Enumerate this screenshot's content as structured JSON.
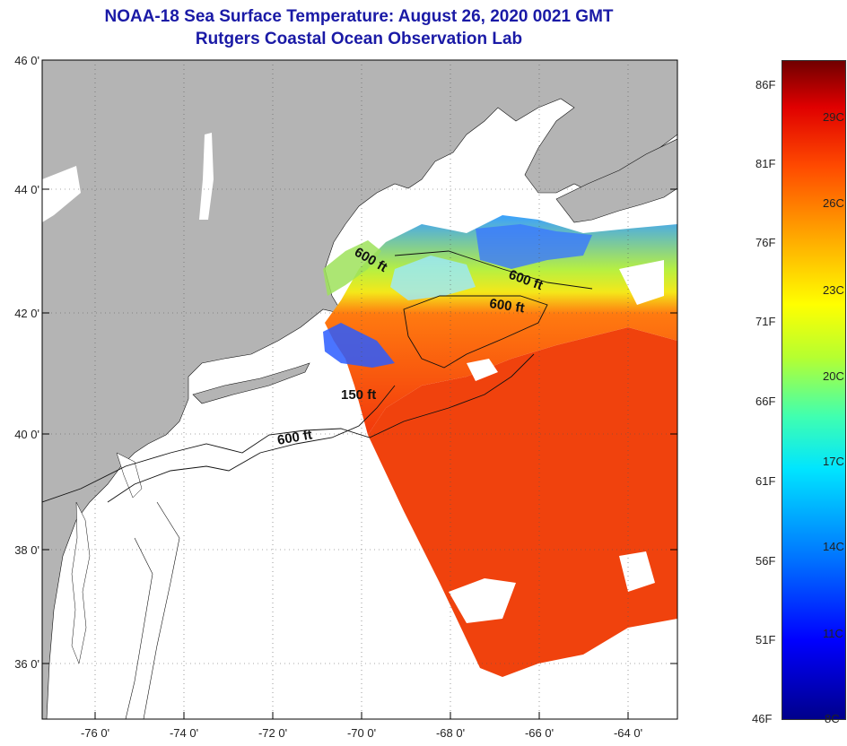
{
  "header": {
    "title_line1": "NOAA-18 Sea Surface Temperature:  August 26, 2020 0021 GMT",
    "title_line2": "Rutgers Coastal Ocean Observation Lab"
  },
  "map": {
    "lat_labels": [
      "46 0'",
      "44 0'",
      "42 0'",
      "40 0'",
      "38 0'",
      "36 0'"
    ],
    "lon_labels": [
      "-76 0'",
      "-74 0'",
      "-72 0'",
      "-70 0'",
      "-68 0'",
      "-66 0'",
      "-64 0'"
    ],
    "isobaths": [
      "600 ft",
      "600 ft",
      "600 ft",
      "150 ft",
      "600 ft"
    ]
  },
  "colorbar": {
    "f_labels": [
      "86F",
      "81F",
      "76F",
      "71F",
      "66F",
      "61F",
      "56F",
      "51F",
      "46F"
    ],
    "c_labels": [
      "29C",
      "26C",
      "23C",
      "20C",
      "17C",
      "14C",
      "11C",
      "8C"
    ]
  },
  "colors": {
    "land": "#b4b4b4",
    "title": "#1a1aa6"
  }
}
